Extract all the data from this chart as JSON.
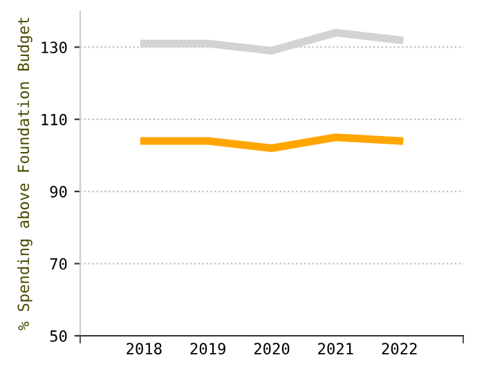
{
  "chart_data": {
    "type": "line",
    "ylabel": "% Spending above Foundation Budget",
    "categories": [
      "2018",
      "2019",
      "2020",
      "2021",
      "2022"
    ],
    "series": [
      {
        "color": "#d3d3d3",
        "values": [
          131,
          131,
          129,
          134,
          132
        ]
      },
      {
        "color": "#ffa500",
        "values": [
          104,
          104,
          102,
          105,
          104
        ]
      }
    ],
    "ylim": [
      50,
      140
    ],
    "yticks": [
      50,
      70,
      90,
      110,
      130
    ],
    "grid": "y",
    "marker": "none",
    "line_style": "solid",
    "legend": false
  }
}
